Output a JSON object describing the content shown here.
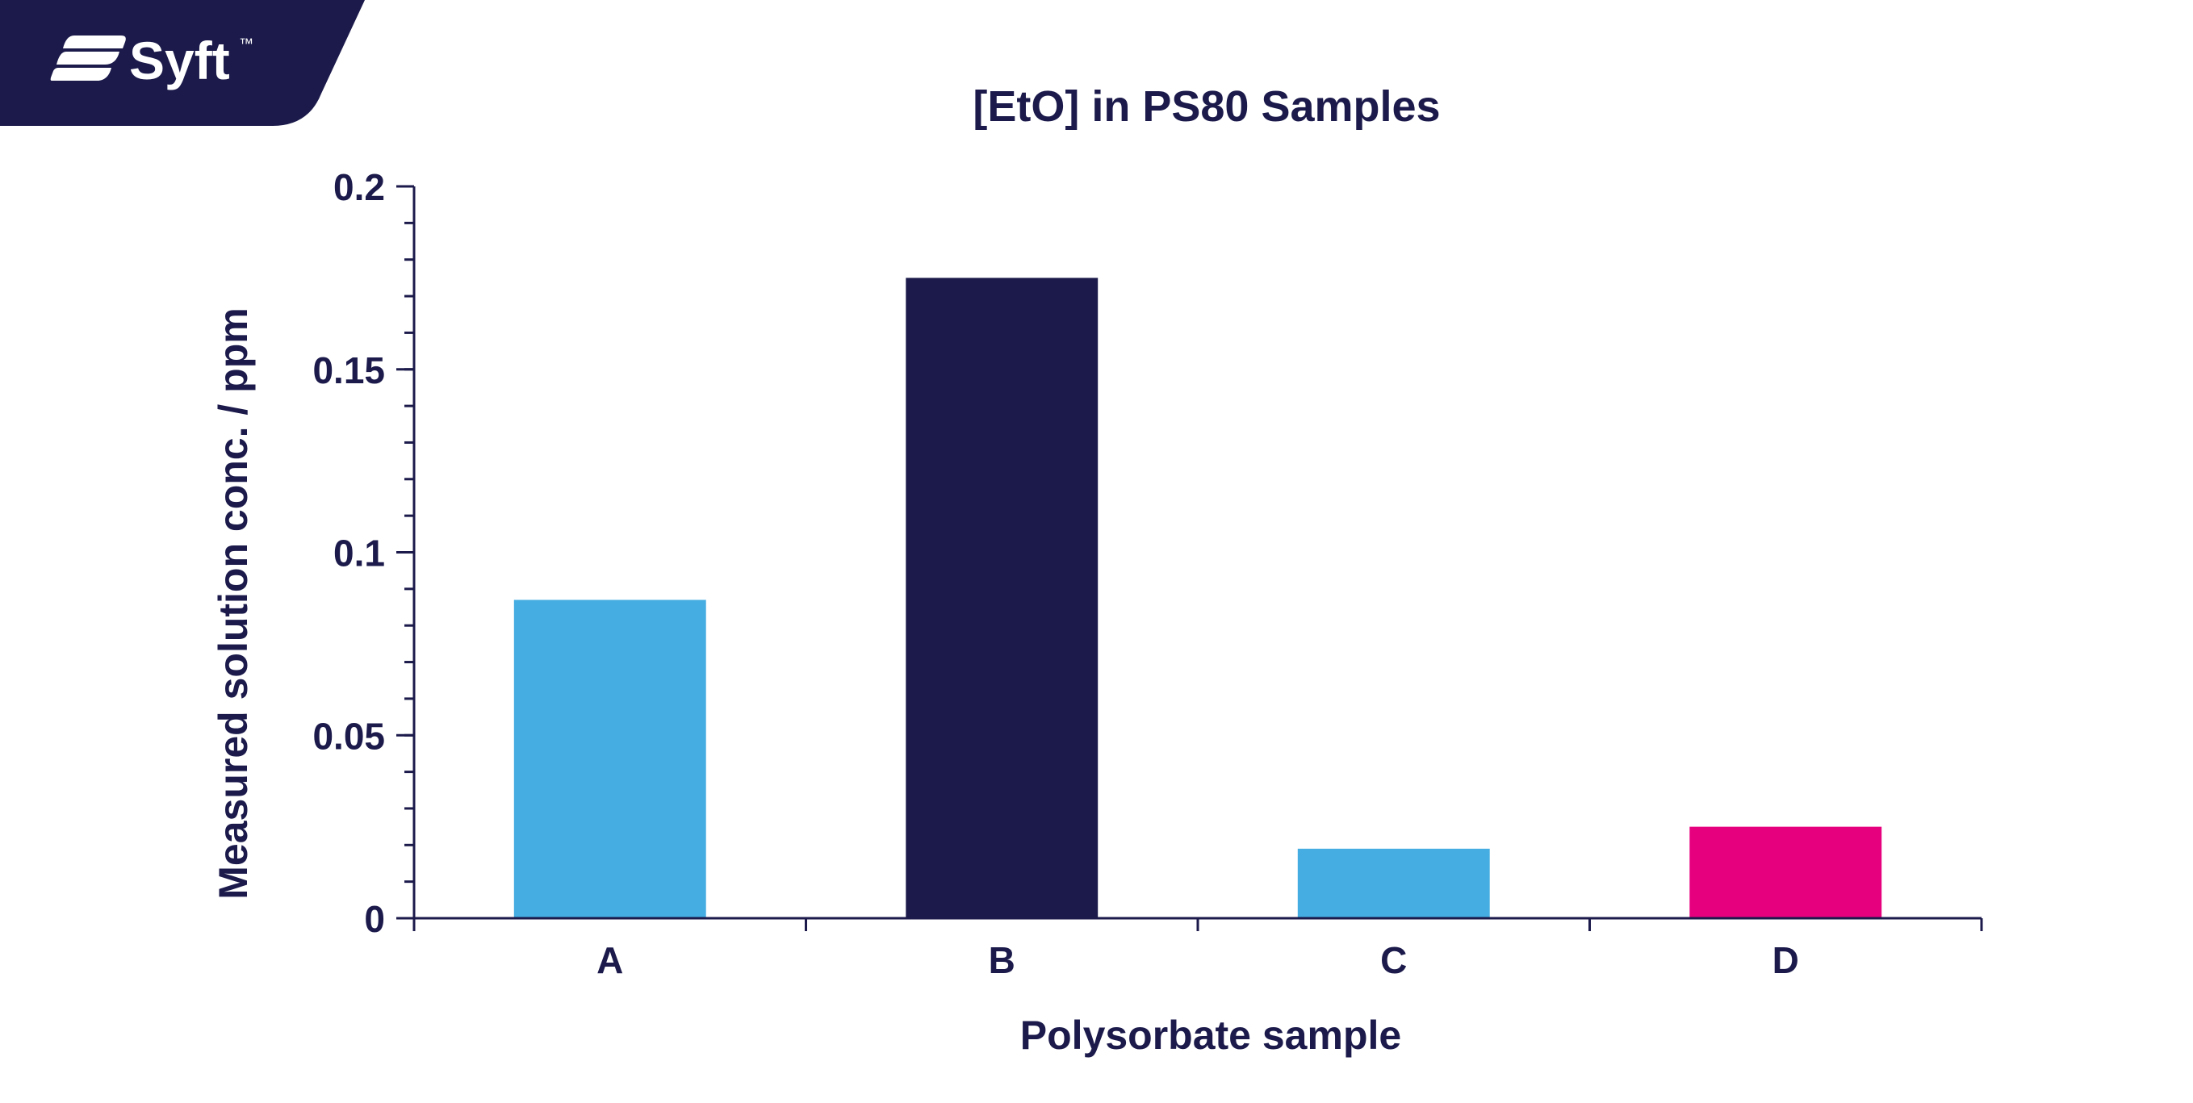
{
  "brand": {
    "name": "Syft",
    "trademark": "™",
    "banner_color": "#1b1a4b"
  },
  "chart_data": {
    "type": "bar",
    "title": "[EtO] in PS80 Samples",
    "xlabel": "Polysorbate sample",
    "ylabel": "Measured solution conc. / ppm",
    "categories": [
      "A",
      "B",
      "C",
      "D"
    ],
    "values": [
      0.087,
      0.175,
      0.019,
      0.025
    ],
    "bar_colors": [
      "#45ade1",
      "#1b1a4b",
      "#45ade1",
      "#e6007e"
    ],
    "ylim": [
      0,
      0.2
    ],
    "y_ticks": [
      0,
      0.05,
      0.1,
      0.15,
      0.2
    ],
    "y_tick_labels": [
      "0",
      "0.05",
      "0.1",
      "0.15",
      "0.2"
    ],
    "y_minor_step": 0.01,
    "grid": false,
    "legend": "none",
    "axis_color": "#1b1a4b"
  }
}
